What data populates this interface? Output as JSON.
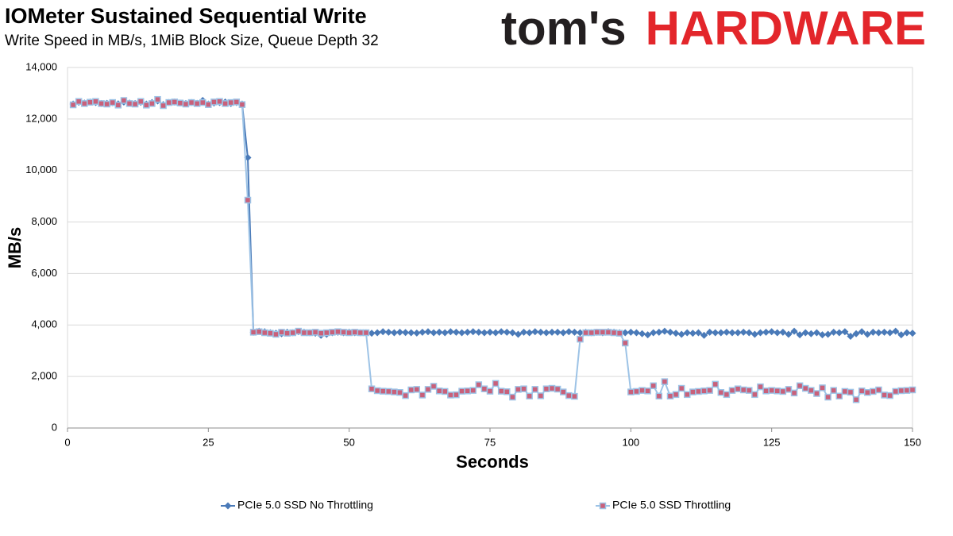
{
  "chart_data": {
    "type": "line",
    "title": "IOMeter Sustained Sequential Write",
    "subtitle": "Write Speed in MB/s, 1MiB Block Size, Queue Depth 32",
    "logo": [
      "tom's",
      "HARDWARE"
    ],
    "x_label": "Seconds",
    "y_label": "MB/s",
    "x": [
      1,
      2,
      3,
      4,
      5,
      6,
      7,
      8,
      9,
      10,
      11,
      12,
      13,
      14,
      15,
      16,
      17,
      18,
      19,
      20,
      21,
      22,
      23,
      24,
      25,
      26,
      27,
      28,
      29,
      30,
      31,
      32,
      33,
      34,
      35,
      36,
      37,
      38,
      39,
      40,
      41,
      42,
      43,
      44,
      45,
      46,
      47,
      48,
      49,
      50,
      51,
      52,
      53,
      54,
      55,
      56,
      57,
      58,
      59,
      60,
      61,
      62,
      63,
      64,
      65,
      66,
      67,
      68,
      69,
      70,
      71,
      72,
      73,
      74,
      75,
      76,
      77,
      78,
      79,
      80,
      81,
      82,
      83,
      84,
      85,
      86,
      87,
      88,
      89,
      90,
      91,
      92,
      93,
      94,
      95,
      96,
      97,
      98,
      99,
      100,
      101,
      102,
      103,
      104,
      105,
      106,
      107,
      108,
      109,
      110,
      111,
      112,
      113,
      114,
      115,
      116,
      117,
      118,
      119,
      120,
      121,
      122,
      123,
      124,
      125,
      126,
      127,
      128,
      129,
      130,
      131,
      132,
      133,
      134,
      135,
      136,
      137,
      138,
      139,
      140,
      141,
      142,
      143,
      144,
      145,
      146,
      147,
      148,
      149,
      150
    ],
    "series": [
      {
        "name": "PCIe 5.0 SSD No Throttling",
        "color": "#4a7ab8",
        "marker": "diamond",
        "values": [
          12580,
          12650,
          12620,
          12660,
          12640,
          12600,
          12610,
          12630,
          12590,
          12660,
          12620,
          12600,
          12650,
          12580,
          12640,
          12700,
          12560,
          12640,
          12660,
          12620,
          12600,
          12640,
          12610,
          12720,
          12580,
          12620,
          12640,
          12660,
          12600,
          12640,
          12580,
          10500,
          3720,
          3760,
          3740,
          3700,
          3680,
          3660,
          3720,
          3700,
          3740,
          3720,
          3700,
          3680,
          3600,
          3640,
          3700,
          3720,
          3700,
          3720,
          3700,
          3700,
          3700,
          3680,
          3700,
          3740,
          3720,
          3700,
          3720,
          3710,
          3700,
          3690,
          3720,
          3740,
          3700,
          3720,
          3700,
          3740,
          3720,
          3700,
          3720,
          3740,
          3720,
          3700,
          3720,
          3700,
          3740,
          3720,
          3700,
          3640,
          3720,
          3700,
          3740,
          3720,
          3700,
          3720,
          3720,
          3700,
          3740,
          3720,
          3700,
          3720,
          3700,
          3720,
          3700,
          3740,
          3720,
          3700,
          3700,
          3720,
          3700,
          3660,
          3620,
          3700,
          3720,
          3760,
          3720,
          3680,
          3640,
          3700,
          3680,
          3700,
          3600,
          3720,
          3700,
          3700,
          3720,
          3700,
          3700,
          3720,
          3700,
          3640,
          3700,
          3720,
          3740,
          3700,
          3720,
          3640,
          3760,
          3620,
          3700,
          3660,
          3700,
          3620,
          3640,
          3720,
          3700,
          3740,
          3560,
          3660,
          3740,
          3640,
          3720,
          3700,
          3720,
          3700,
          3760,
          3620,
          3700,
          3680
        ]
      },
      {
        "name": "PCIe 5.0 SSD Throttling",
        "color": "#9dc3e6",
        "marker_color": "#c9607a",
        "marker": "square",
        "values": [
          12550,
          12680,
          12600,
          12650,
          12680,
          12600,
          12580,
          12640,
          12540,
          12720,
          12600,
          12580,
          12680,
          12540,
          12600,
          12760,
          12520,
          12640,
          12660,
          12620,
          12580,
          12640,
          12600,
          12640,
          12560,
          12660,
          12680,
          12600,
          12640,
          12660,
          12560,
          8850,
          3720,
          3740,
          3700,
          3680,
          3640,
          3720,
          3680,
          3700,
          3760,
          3700,
          3700,
          3720,
          3680,
          3700,
          3720,
          3740,
          3720,
          3700,
          3720,
          3700,
          3700,
          1520,
          1450,
          1430,
          1420,
          1400,
          1380,
          1260,
          1480,
          1500,
          1280,
          1500,
          1620,
          1440,
          1420,
          1280,
          1290,
          1430,
          1440,
          1460,
          1680,
          1520,
          1430,
          1730,
          1430,
          1410,
          1200,
          1500,
          1520,
          1240,
          1500,
          1250,
          1520,
          1540,
          1510,
          1400,
          1260,
          1230,
          3450,
          3700,
          3700,
          3720,
          3720,
          3720,
          3700,
          3680,
          3300,
          1400,
          1420,
          1460,
          1440,
          1640,
          1240,
          1800,
          1240,
          1300,
          1540,
          1300,
          1400,
          1420,
          1440,
          1460,
          1700,
          1380,
          1300,
          1460,
          1520,
          1480,
          1460,
          1300,
          1600,
          1440,
          1460,
          1440,
          1420,
          1500,
          1360,
          1640,
          1540,
          1460,
          1340,
          1560,
          1200,
          1460,
          1240,
          1420,
          1390,
          1100,
          1440,
          1380,
          1420,
          1480,
          1280,
          1260,
          1420,
          1450,
          1460,
          1480
        ]
      }
    ],
    "xlim": [
      0,
      150
    ],
    "xticks": [
      0,
      25,
      50,
      75,
      100,
      125,
      150
    ],
    "ylim": [
      0,
      14000
    ],
    "yticks": [
      0,
      {
        "value": 2000,
        "label": "2,000"
      },
      {
        "value": 4000,
        "label": "4,000"
      },
      {
        "value": 6000,
        "label": "6,000"
      },
      {
        "value": 8000,
        "label": "8,000"
      },
      {
        "value": 10000,
        "label": "10,000"
      },
      {
        "value": 12000,
        "label": "12,000"
      },
      {
        "value": 14000,
        "label": "14,000"
      }
    ],
    "grid": true,
    "legend": "bottom"
  }
}
